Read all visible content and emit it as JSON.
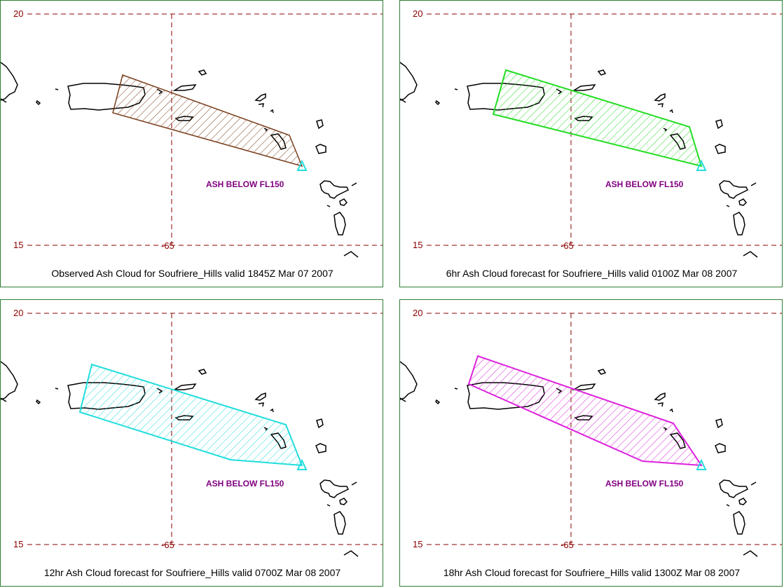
{
  "panels": [
    {
      "caption": "Observed Ash Cloud for Soufriere_Hills valid 1845Z Mar 07 2007",
      "lat_top": "20",
      "lat_bottom": "15",
      "lon": "-65",
      "ash_label": "ASH BELOW FL150",
      "cloud_color": "#7a3f1e"
    },
    {
      "caption": "6hr Ash Cloud forecast for Soufriere_Hills valid 0100Z Mar 08 2007",
      "lat_top": "20",
      "lat_bottom": "15",
      "lon": "-65",
      "ash_label": "ASH BELOW FL150",
      "cloud_color": "#22dd22"
    },
    {
      "caption": "12hr Ash Cloud forecast for Soufriere_Hills valid 0700Z Mar 08 2007",
      "lat_top": "20",
      "lat_bottom": "15",
      "lon": "-65",
      "ash_label": "ASH BELOW FL150",
      "cloud_color": "#22dddd"
    },
    {
      "caption": "18hr Ash Cloud forecast for Soufriere_Hills valid 1300Z Mar 08 2007",
      "lat_top": "20",
      "lat_bottom": "15",
      "lon": "-65",
      "ash_label": "ASH BELOW FL150",
      "cloud_color": "#dd22dd"
    }
  ],
  "volcano_marker_color": "#22dddd",
  "grid_color": "#8b0000"
}
